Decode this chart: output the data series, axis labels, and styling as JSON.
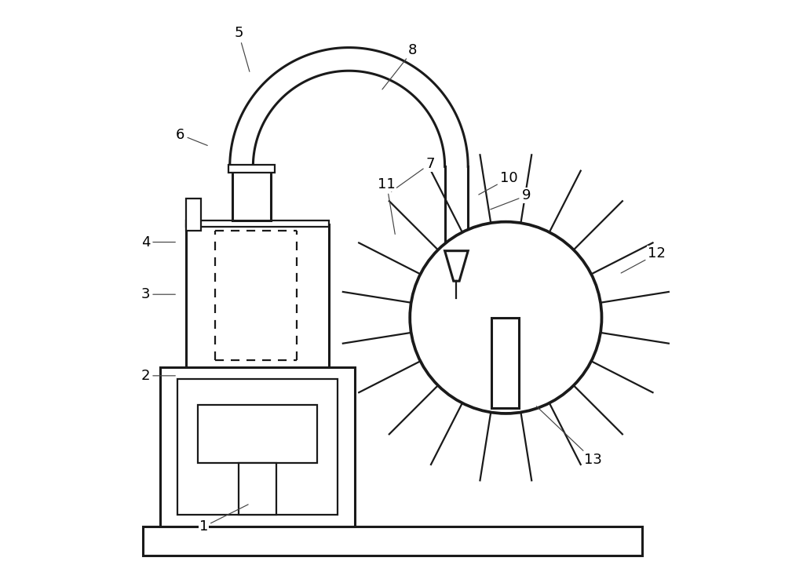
{
  "bg_color": "#ffffff",
  "line_color": "#1a1a1a",
  "lw": 1.6,
  "lw_thick": 2.2,
  "label_fontsize": 13,
  "labels_data": [
    [
      "1",
      [
        0.175,
        0.095
      ],
      [
        0.255,
        0.135
      ]
    ],
    [
      "2",
      [
        0.075,
        0.355
      ],
      [
        0.13,
        0.355
      ]
    ],
    [
      "3",
      [
        0.075,
        0.495
      ],
      [
        0.13,
        0.495
      ]
    ],
    [
      "4",
      [
        0.075,
        0.585
      ],
      [
        0.13,
        0.585
      ]
    ],
    [
      "5",
      [
        0.235,
        0.945
      ],
      [
        0.255,
        0.875
      ]
    ],
    [
      "6",
      [
        0.135,
        0.77
      ],
      [
        0.185,
        0.75
      ]
    ],
    [
      "7",
      [
        0.565,
        0.72
      ],
      [
        0.495,
        0.67
      ]
    ],
    [
      "8",
      [
        0.535,
        0.915
      ],
      [
        0.48,
        0.845
      ]
    ],
    [
      "9",
      [
        0.73,
        0.665
      ],
      [
        0.665,
        0.64
      ]
    ],
    [
      "10",
      [
        0.7,
        0.695
      ],
      [
        0.645,
        0.665
      ]
    ],
    [
      "11",
      [
        0.49,
        0.685
      ],
      [
        0.505,
        0.595
      ]
    ],
    [
      "12",
      [
        0.955,
        0.565
      ],
      [
        0.89,
        0.53
      ]
    ],
    [
      "13",
      [
        0.845,
        0.21
      ],
      [
        0.745,
        0.305
      ]
    ]
  ]
}
